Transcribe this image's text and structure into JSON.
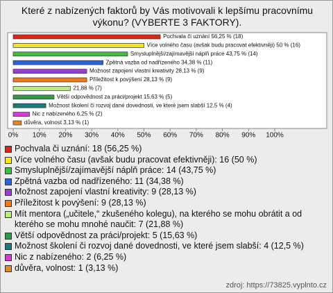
{
  "chart_data": {
    "type": "hbar",
    "title": "Které z nabízených faktorů by Vás motivovali k lepšímu pracovnímu výkonu? (VYBERTE 3 FAKTORY).",
    "categories": [
      "Pochvala či uznání: 18 (56,25 %)",
      "Více volného času (avšak budu pracovat efektivněji): 16 (50 %)",
      "Smysluplnější/zajímavější náplň práce: 14 (43,75 %)",
      "Zpětná vazba od nadřízeného: 11 (34,38 %)",
      "Možnost zapojení vlastní kreativity: 9 (28,13 %)",
      "Příležitost k povýšení: 9 (28,13 %)",
      "Mít mentora („učitele,“ zkušeného kolegu), na kterého se mohu obrátit a od kterého se mohu mnohé naučit: 7 (21,88 %)",
      "Větší odpovědnost za práci/projekt: 5 (15,63 %)",
      "Možnost školení či rozvoj dané dovednosti, ve které jsem slabší: 4 (12,5 %)",
      "Nic z nabízeného: 2 (6,25 %)",
      "důvěra, volnost: 1 (3,13 %)"
    ],
    "values": [
      56.25,
      50,
      43.75,
      34.38,
      28.13,
      28.13,
      21.88,
      15.63,
      12.5,
      6.25,
      3.13
    ],
    "value_labels": [
      "Pochvala či uznání 56,25 % (18)",
      "Více volného času (avšak budu pracovat efektivněji) 50 % (16)",
      "Smysluplnější/zajímavější náplň práce 43,75 % (14)",
      "Zpětná vazba od nadřízeného 34,38 % (11)",
      "Možnost zapojení vlastní kreativity 28,13 % (9)",
      "Příležitost k povýšení 28,13 % (9)",
      "21,88 % (7)",
      "Větší odpovědnost za práci/projekt 15,63 % (5)",
      "Možnost školení či rozvoj dané dovednosti, ve které jsem slabší 12,5 % (4)",
      "Nic z nabízeného 6,25 % (2)",
      "důvěra, volnost 3,13 % (1)"
    ],
    "colors": [
      "#d8281c",
      "#f4e423",
      "#3cbf3c",
      "#2d62d6",
      "#9a3ed0",
      "#f07a1c",
      "#b8f07a",
      "#2e9a4a",
      "#1e7878",
      "#d23ed6",
      "#e0882a"
    ],
    "xlim": [
      0,
      100
    ],
    "xticks": [
      {
        "value": 0,
        "label": "0%"
      },
      {
        "value": 10,
        "label": "10%"
      },
      {
        "value": 20,
        "label": "20%"
      },
      {
        "value": 30,
        "label": "30%"
      },
      {
        "value": 40,
        "label": "40%"
      },
      {
        "value": 50,
        "label": "50%"
      },
      {
        "value": 60,
        "label": "60%"
      },
      {
        "value": 70,
        "label": "70%"
      },
      {
        "value": 80,
        "label": "80%"
      },
      {
        "value": 90,
        "label": "90%"
      },
      {
        "value": 100,
        "label": "100%"
      }
    ],
    "source": "zdroj: https://73825.vyplnto.cz"
  }
}
